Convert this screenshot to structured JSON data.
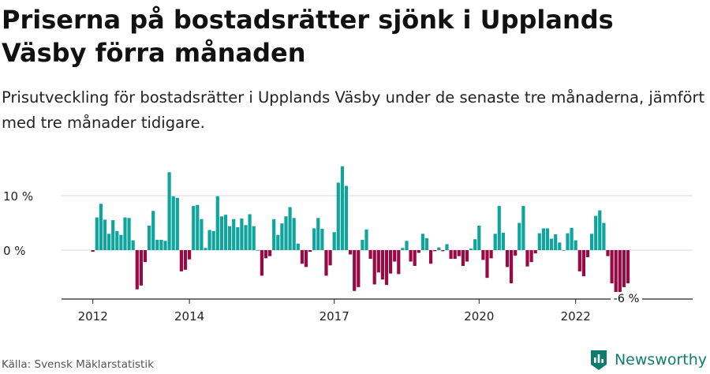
{
  "header": {
    "title": "Priserna på bostadsrätter sjönk i Upplands Väsby förra månaden",
    "subtitle": "Prisutveckling för bostadsrätter i Upplands Väsby under de senaste tre månaderna, jämfört med tre månader tidigare."
  },
  "footer": {
    "source": "Källa: Svensk Mäklarstatistik",
    "brand": "Newsworthy"
  },
  "colors": {
    "positive": "#10a59c",
    "negative": "#990a44",
    "grid": "#d9d9d9",
    "axis": "#222222",
    "brand": "#0f7d6e"
  },
  "chart_data": {
    "type": "bar",
    "title": "",
    "xlabel": "",
    "ylabel": "",
    "ylim": [
      -9,
      17
    ],
    "y_ticks": [
      0,
      10
    ],
    "y_tick_labels": [
      "0 %",
      "10 %"
    ],
    "x_ticks": [
      2012,
      2014,
      2017,
      2020,
      2022
    ],
    "grid": true,
    "x_start": "2012-01",
    "x_end": "2022-11",
    "last_value_label": "-6 %",
    "values": [
      -0.3,
      6,
      8.5,
      5.6,
      3,
      5.5,
      3.5,
      2.8,
      6,
      5.9,
      1.8,
      -7.2,
      -6.5,
      -2.2,
      4.5,
      7.2,
      1.9,
      1.9,
      1.7,
      14.3,
      9.9,
      9.6,
      -3.9,
      -3.6,
      -1.7,
      8.1,
      8.3,
      5.7,
      0.4,
      3.7,
      3.5,
      9.9,
      6.2,
      6.5,
      4.4,
      5.7,
      4.2,
      5.8,
      4.6,
      6.6,
      4.4,
      0,
      -4.7,
      -1.5,
      -1.1,
      5.7,
      2.8,
      4.9,
      6.2,
      7.9,
      5.9,
      1.2,
      -2.5,
      -3.1,
      -0.3,
      4,
      5.9,
      3.9,
      -4.7,
      -2.8,
      3.3,
      12.4,
      15.4,
      11.8,
      -0.8,
      -7.5,
      -6.8,
      1.9,
      3.8,
      -1.6,
      -6.3,
      -4.1,
      -5.4,
      -6.4,
      -4.3,
      -2.1,
      -4.4,
      0.4,
      1.7,
      -2.1,
      -2.9,
      -0.5,
      3,
      2.2,
      -2.5,
      -0.2,
      0.5,
      -0.2,
      1.1,
      -1.6,
      -1.6,
      -1.1,
      -2.9,
      -2.1,
      0.3,
      2,
      4.5,
      -1.8,
      -5.1,
      -1.5,
      3,
      8.1,
      3.2,
      -3.1,
      -6.1,
      -1,
      5,
      8.1,
      -3,
      -2.2,
      -0.6,
      3.1,
      4,
      4,
      2.1,
      2.9,
      1.4,
      0,
      3.1,
      4.1,
      1.8,
      -3.9,
      -4.8,
      -1.3,
      3,
      6.3,
      7.3,
      5,
      -1.1,
      -6.1,
      -8,
      -8,
      -6.8,
      -6.1
    ]
  }
}
